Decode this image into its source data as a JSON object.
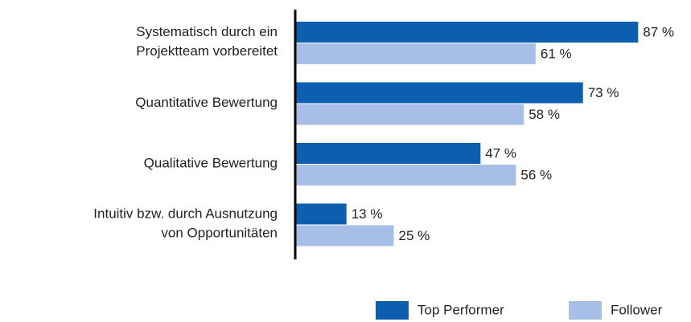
{
  "chart_data": {
    "type": "barh",
    "categories": [
      "Systematisch durch ein\nProjektteam vorbereitet",
      "Quantitative Bewertung",
      "Qualitative Bewertung",
      "Intuitiv bzw. durch Ausnutzung\nvon Opportunitäten"
    ],
    "series": [
      {
        "name": "Top Performer",
        "color": "#0b5fae",
        "values": [
          87,
          73,
          47,
          13
        ],
        "value_labels": [
          "87 %",
          "73 %",
          "47 %",
          "13 %"
        ]
      },
      {
        "name": "Follower",
        "color": "#a7bee6",
        "values": [
          61,
          58,
          56,
          25
        ],
        "value_labels": [
          "61 %",
          "58 %",
          "56 %",
          "25 %"
        ]
      }
    ],
    "xlim": [
      0,
      100
    ],
    "legend": "bottom-right"
  }
}
